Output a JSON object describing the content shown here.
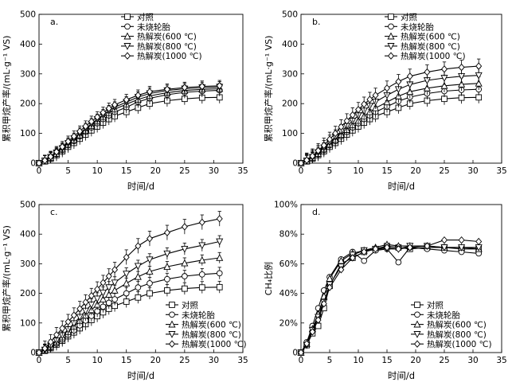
{
  "chart_data": [
    {
      "type": "line",
      "panel_label": "a.",
      "xlabel": "时间/d",
      "ylabel": "累积甲烷产率/(mL·g⁻¹ VS)",
      "xlim": [
        0,
        35
      ],
      "ylim": [
        0,
        500
      ],
      "xticks": [
        "0",
        "5",
        "10",
        "15",
        "20",
        "25",
        "30",
        "35"
      ],
      "yticks": [
        "0",
        "100",
        "200",
        "300",
        "400",
        "500"
      ],
      "legend_position": "top-right",
      "x": [
        0,
        1,
        2,
        3,
        4,
        5,
        6,
        7,
        8,
        9,
        10,
        11,
        12,
        13,
        15,
        17,
        19,
        22,
        25,
        28,
        31
      ],
      "series": [
        {
          "name": "对照",
          "marker": "square",
          "values": [
            0,
            6,
            15,
            27,
            40,
            55,
            68,
            82,
            96,
            110,
            123,
            136,
            148,
            158,
            172,
            186,
            200,
            210,
            216,
            220,
            221
          ],
          "err": 20
        },
        {
          "name": "未烧轮胎",
          "marker": "circle",
          "values": [
            0,
            7,
            17,
            30,
            44,
            60,
            74,
            90,
            105,
            120,
            134,
            148,
            160,
            172,
            188,
            206,
            218,
            230,
            238,
            242,
            245
          ],
          "err": 20
        },
        {
          "name": "热解炭(600 ℃)",
          "marker": "triangle-up",
          "values": [
            0,
            7,
            18,
            32,
            47,
            63,
            78,
            94,
            110,
            126,
            141,
            156,
            169,
            181,
            198,
            214,
            226,
            237,
            244,
            248,
            250
          ],
          "err": 18
        },
        {
          "name": "热解炭(800 ℃)",
          "marker": "triangle-down",
          "values": [
            0,
            8,
            20,
            35,
            50,
            67,
            83,
            100,
            116,
            132,
            147,
            162,
            176,
            188,
            205,
            222,
            234,
            244,
            250,
            254,
            256
          ],
          "err": 18
        },
        {
          "name": "热解炭(1000 ℃)",
          "marker": "diamond",
          "values": [
            0,
            9,
            22,
            38,
            55,
            73,
            90,
            107,
            124,
            140,
            155,
            170,
            184,
            196,
            213,
            228,
            240,
            248,
            254,
            258,
            260
          ],
          "err": 18
        }
      ]
    },
    {
      "type": "line",
      "panel_label": "b.",
      "xlabel": "时间/d",
      "ylabel": "累积甲烷产率/(mL·g⁻¹ VS)",
      "xlim": [
        0,
        35
      ],
      "ylim": [
        0,
        500
      ],
      "xticks": [
        "0",
        "5",
        "10",
        "15",
        "20",
        "25",
        "30",
        "35"
      ],
      "yticks": [
        "0",
        "100",
        "200",
        "300",
        "400",
        "500"
      ],
      "legend_position": "top-right",
      "x": [
        0,
        1,
        2,
        3,
        4,
        5,
        6,
        7,
        8,
        9,
        10,
        11,
        12,
        13,
        15,
        17,
        19,
        22,
        25,
        28,
        31
      ],
      "series": [
        {
          "name": "对照",
          "marker": "square",
          "values": [
            0,
            6,
            15,
            27,
            40,
            55,
            68,
            82,
            96,
            110,
            123,
            136,
            148,
            158,
            172,
            186,
            200,
            210,
            216,
            220,
            221
          ],
          "err": 20
        },
        {
          "name": "未烧轮胎",
          "marker": "circle",
          "values": [
            0,
            7,
            17,
            30,
            44,
            60,
            74,
            90,
            105,
            120,
            134,
            148,
            160,
            172,
            190,
            208,
            222,
            234,
            242,
            246,
            248
          ],
          "err": 20
        },
        {
          "name": "热解炭(600 ℃)",
          "marker": "triangle-up",
          "values": [
            0,
            7,
            18,
            32,
            47,
            63,
            79,
            96,
            112,
            128,
            143,
            158,
            172,
            185,
            205,
            225,
            240,
            252,
            260,
            265,
            268
          ],
          "err": 22
        },
        {
          "name": "热解炭(800 ℃)",
          "marker": "triangle-down",
          "values": [
            0,
            8,
            20,
            36,
            52,
            70,
            88,
            106,
            124,
            142,
            160,
            176,
            192,
            206,
            228,
            248,
            264,
            278,
            286,
            292,
            295
          ],
          "err": 24
        },
        {
          "name": "热解炭(1000 ℃)",
          "marker": "diamond",
          "values": [
            0,
            10,
            24,
            42,
            60,
            80,
            100,
            122,
            142,
            162,
            180,
            198,
            214,
            228,
            252,
            274,
            292,
            306,
            316,
            322,
            326
          ],
          "err": 24
        }
      ]
    },
    {
      "type": "line",
      "panel_label": "c.",
      "xlabel": "时间/d",
      "ylabel": "累积甲烷产率/(mL·g⁻¹ VS)",
      "xlim": [
        0,
        35
      ],
      "ylim": [
        0,
        500
      ],
      "xticks": [
        "0",
        "5",
        "10",
        "15",
        "20",
        "25",
        "30",
        "35"
      ],
      "yticks": [
        "0",
        "100",
        "200",
        "300",
        "400",
        "500"
      ],
      "legend_position": "bottom-right",
      "x": [
        0,
        1,
        2,
        3,
        4,
        5,
        6,
        7,
        8,
        9,
        10,
        11,
        12,
        13,
        15,
        17,
        19,
        22,
        25,
        28,
        31
      ],
      "series": [
        {
          "name": "对照",
          "marker": "square",
          "values": [
            0,
            6,
            15,
            27,
            40,
            55,
            68,
            82,
            96,
            110,
            123,
            136,
            148,
            158,
            172,
            186,
            200,
            210,
            216,
            220,
            221
          ],
          "err": 20
        },
        {
          "name": "未烧轮胎",
          "marker": "circle",
          "values": [
            0,
            7,
            17,
            30,
            44,
            60,
            75,
            92,
            108,
            124,
            140,
            155,
            168,
            180,
            200,
            220,
            234,
            248,
            258,
            264,
            268
          ],
          "err": 20
        },
        {
          "name": "热解炭(600 ℃)",
          "marker": "triangle-up",
          "values": [
            0,
            8,
            20,
            36,
            52,
            70,
            88,
            108,
            126,
            144,
            162,
            180,
            196,
            210,
            234,
            256,
            274,
            290,
            302,
            312,
            320
          ],
          "err": 18
        },
        {
          "name": "热解炭(800 ℃)",
          "marker": "triangle-down",
          "values": [
            0,
            9,
            23,
            40,
            58,
            78,
            99,
            120,
            141,
            162,
            182,
            202,
            220,
            236,
            266,
            292,
            314,
            334,
            350,
            362,
            375
          ],
          "err": 20
        },
        {
          "name": "热解炭(1000 ℃)",
          "marker": "diamond",
          "values": [
            0,
            14,
            36,
            60,
            82,
            104,
            126,
            148,
            170,
            192,
            214,
            236,
            258,
            280,
            322,
            360,
            385,
            405,
            425,
            440,
            452
          ],
          "err": 25
        }
      ]
    },
    {
      "type": "line",
      "panel_label": "d.",
      "xlabel": "时间/d",
      "ylabel": "CH₄比例",
      "xlim": [
        0,
        35
      ],
      "ylim": [
        0,
        100
      ],
      "xticks": [
        "0",
        "5",
        "10",
        "15",
        "20",
        "25",
        "30",
        "35"
      ],
      "yticks": [
        "0",
        "20%",
        "40%",
        "60%",
        "80%",
        "100%"
      ],
      "legend_position": "bottom-right",
      "x": [
        0,
        1,
        2,
        3,
        4,
        5,
        7,
        9,
        11,
        13,
        15,
        17,
        19,
        22,
        25,
        28,
        31
      ],
      "series": [
        {
          "name": "对照",
          "marker": "square",
          "values": [
            0,
            5,
            13,
            18,
            30,
            45,
            60,
            64,
            68,
            70,
            72,
            71,
            70,
            71,
            71,
            70,
            70
          ],
          "err": 0
        },
        {
          "name": "未烧轮胎",
          "marker": "circle",
          "values": [
            0,
            7,
            18,
            30,
            42,
            51,
            63,
            68,
            62,
            69,
            70,
            61,
            71,
            70,
            69,
            68,
            67
          ],
          "err": 0
        },
        {
          "name": "热解炭(600 ℃)",
          "marker": "triangle-up",
          "values": [
            0,
            6,
            16,
            26,
            38,
            50,
            62,
            67,
            69,
            71,
            73,
            72,
            72,
            72,
            71,
            71,
            70
          ],
          "err": 0
        },
        {
          "name": "热解炭(800 ℃)",
          "marker": "triangle-down",
          "values": [
            0,
            5,
            15,
            24,
            34,
            46,
            58,
            66,
            69,
            70,
            70,
            70,
            72,
            72,
            71,
            71,
            71
          ],
          "err": 0
        },
        {
          "name": "热解炭(1000 ℃)",
          "marker": "diamond",
          "values": [
            0,
            6,
            14,
            22,
            33,
            44,
            56,
            64,
            68,
            70,
            71,
            70,
            71,
            72,
            76,
            76,
            75
          ],
          "err": 0
        }
      ]
    }
  ]
}
